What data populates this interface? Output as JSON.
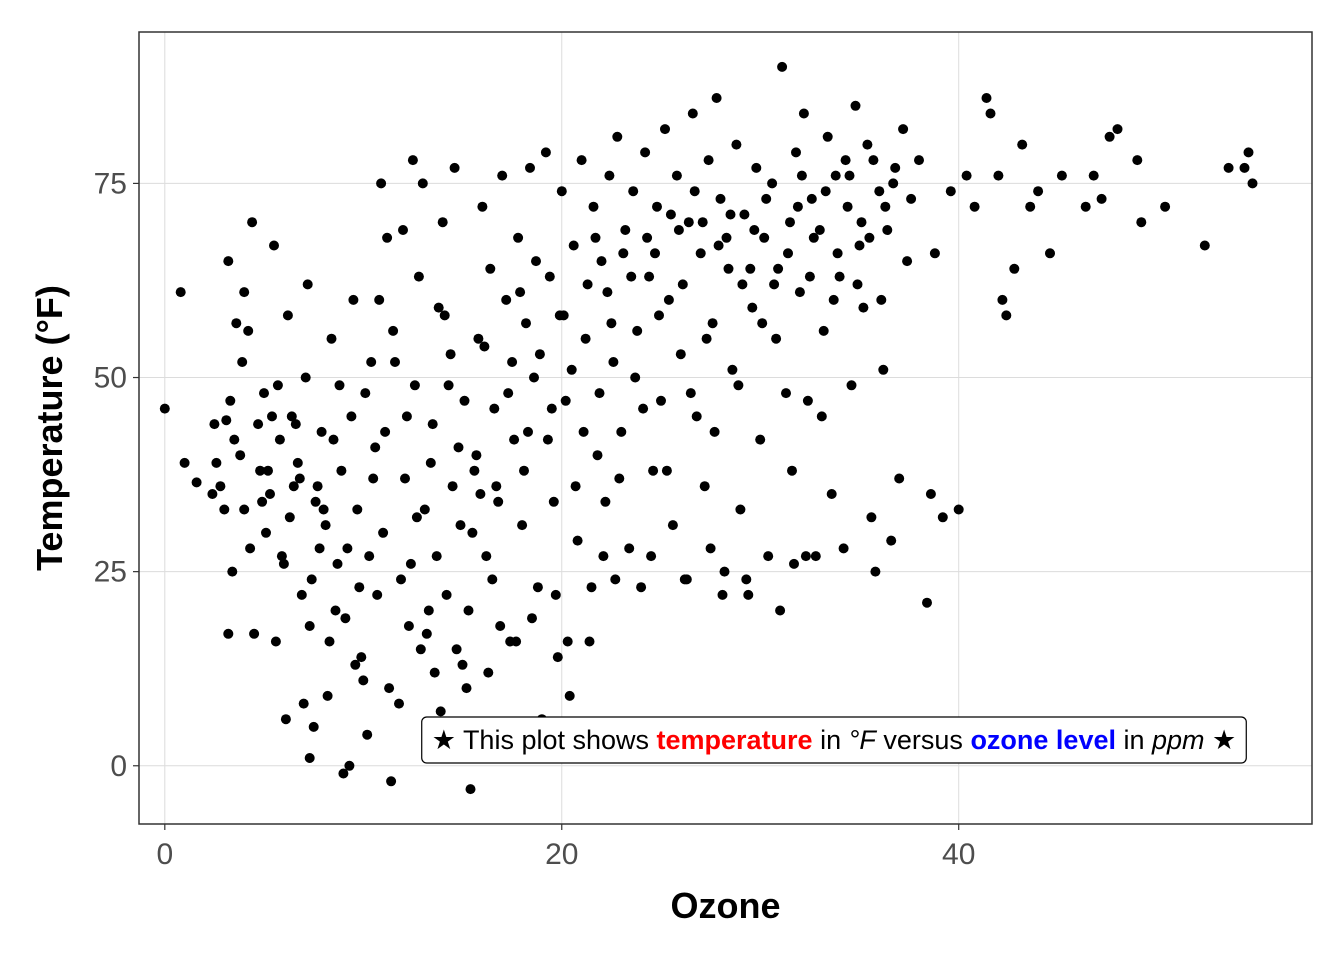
{
  "chart_data": {
    "type": "scatter",
    "title": "",
    "xlabel": "Ozone",
    "ylabel": "Temperature (°F)",
    "xlim": [
      -1.3,
      57.8
    ],
    "ylim": [
      -7.5,
      94.5
    ],
    "x_ticks": [
      0,
      20,
      40
    ],
    "y_ticks": [
      0,
      25,
      50,
      75
    ],
    "grid": true,
    "point_color": "#000000",
    "annotation": {
      "x": 0.75,
      "y": 0.93,
      "segments": [
        {
          "text": "★ This plot shows ",
          "color": "#000000",
          "style": "normal"
        },
        {
          "text": "temperature",
          "color": "#ff0000",
          "style": "bold"
        },
        {
          "text": " in ",
          "color": "#000000",
          "style": "normal"
        },
        {
          "text": "°F",
          "color": "#000000",
          "style": "italic"
        },
        {
          "text": " versus ",
          "color": "#000000",
          "style": "normal"
        },
        {
          "text": "ozone level",
          "color": "#0000ff",
          "style": "bold"
        },
        {
          "text": " in ",
          "color": "#000000",
          "style": "normal"
        },
        {
          "text": "ppm",
          "color": "#000000",
          "style": "italic"
        },
        {
          "text": " ★",
          "color": "#000000",
          "style": "normal"
        }
      ]
    },
    "points": [
      [
        0.0,
        46
      ],
      [
        0.8,
        61
      ],
      [
        1.0,
        39
      ],
      [
        1.6,
        36.5
      ],
      [
        2.4,
        35
      ],
      [
        2.5,
        44
      ],
      [
        2.6,
        39
      ],
      [
        2.8,
        36
      ],
      [
        3.0,
        33
      ],
      [
        3.1,
        44.5
      ],
      [
        3.2,
        17
      ],
      [
        3.2,
        65
      ],
      [
        3.3,
        47
      ],
      [
        3.4,
        25
      ],
      [
        3.5,
        42
      ],
      [
        3.6,
        57
      ],
      [
        3.8,
        40
      ],
      [
        4.0,
        61
      ],
      [
        4.0,
        33
      ],
      [
        4.2,
        56
      ],
      [
        4.4,
        70
      ],
      [
        4.5,
        17
      ],
      [
        4.7,
        44
      ],
      [
        5.0,
        48
      ],
      [
        5.2,
        38
      ],
      [
        5.3,
        35
      ],
      [
        5.5,
        67
      ],
      [
        5.6,
        16
      ],
      [
        5.8,
        42
      ],
      [
        6.1,
        6
      ],
      [
        6.2,
        58
      ],
      [
        6.4,
        45
      ],
      [
        6.6,
        44
      ],
      [
        6.8,
        37
      ],
      [
        7.0,
        8
      ],
      [
        7.2,
        62
      ],
      [
        7.3,
        1
      ],
      [
        7.4,
        24
      ],
      [
        7.5,
        5
      ],
      [
        7.6,
        34
      ],
      [
        7.8,
        28
      ],
      [
        8.0,
        33
      ],
      [
        8.2,
        9
      ],
      [
        8.5,
        42
      ],
      [
        8.6,
        20
      ],
      [
        8.8,
        49
      ],
      [
        9.0,
        -1
      ],
      [
        9.2,
        28
      ],
      [
        9.3,
        0
      ],
      [
        9.6,
        13
      ],
      [
        9.8,
        23
      ],
      [
        10.0,
        11
      ],
      [
        10.2,
        4
      ],
      [
        10.4,
        52
      ],
      [
        10.5,
        37
      ],
      [
        10.8,
        60
      ],
      [
        10.9,
        75
      ],
      [
        11.2,
        68
      ],
      [
        11.4,
        -2
      ],
      [
        11.6,
        52
      ],
      [
        11.8,
        8
      ],
      [
        12.0,
        69
      ],
      [
        12.2,
        45
      ],
      [
        12.4,
        26
      ],
      [
        12.5,
        78
      ],
      [
        12.8,
        63
      ],
      [
        13.0,
        75
      ],
      [
        13.2,
        17
      ],
      [
        13.4,
        39
      ],
      [
        13.6,
        12
      ],
      [
        13.8,
        59
      ],
      [
        14.0,
        70
      ],
      [
        14.2,
        22
      ],
      [
        14.4,
        53
      ],
      [
        14.6,
        77
      ],
      [
        14.8,
        41
      ],
      [
        15.0,
        13
      ],
      [
        15.2,
        10
      ],
      [
        15.4,
        -3
      ],
      [
        15.5,
        30
      ],
      [
        15.6,
        38
      ],
      [
        15.8,
        55
      ],
      [
        16.0,
        72
      ],
      [
        16.2,
        27
      ],
      [
        16.4,
        64
      ],
      [
        16.6,
        46
      ],
      [
        16.8,
        34
      ],
      [
        17.0,
        76
      ],
      [
        17.2,
        60
      ],
      [
        17.4,
        16
      ],
      [
        17.6,
        42
      ],
      [
        17.8,
        68
      ],
      [
        18.0,
        31
      ],
      [
        18.2,
        57
      ],
      [
        18.4,
        77
      ],
      [
        18.6,
        50
      ],
      [
        18.8,
        23
      ],
      [
        19.0,
        6
      ],
      [
        19.2,
        79
      ],
      [
        19.4,
        63
      ],
      [
        19.6,
        34
      ],
      [
        19.8,
        14
      ],
      [
        20.0,
        74
      ],
      [
        20.2,
        47
      ],
      [
        20.4,
        9
      ],
      [
        20.6,
        67
      ],
      [
        20.8,
        29
      ],
      [
        21.0,
        78
      ],
      [
        21.2,
        55
      ],
      [
        21.4,
        16
      ],
      [
        21.6,
        72
      ],
      [
        21.8,
        40
      ],
      [
        22.0,
        65
      ],
      [
        22.2,
        34
      ],
      [
        22.4,
        76
      ],
      [
        22.6,
        52
      ],
      [
        22.8,
        81
      ],
      [
        23.0,
        43
      ],
      [
        23.2,
        69
      ],
      [
        23.4,
        28
      ],
      [
        23.6,
        74
      ],
      [
        23.8,
        56
      ],
      [
        24.0,
        23
      ],
      [
        24.2,
        79
      ],
      [
        24.4,
        63
      ],
      [
        24.6,
        38
      ],
      [
        24.8,
        72
      ],
      [
        25.0,
        47
      ],
      [
        25.2,
        82
      ],
      [
        25.4,
        60
      ],
      [
        25.6,
        31
      ],
      [
        25.8,
        76
      ],
      [
        26.0,
        53
      ],
      [
        26.2,
        24
      ],
      [
        26.4,
        70
      ],
      [
        26.6,
        84
      ],
      [
        26.8,
        45
      ],
      [
        27.0,
        66
      ],
      [
        27.2,
        36
      ],
      [
        27.4,
        78
      ],
      [
        27.6,
        57
      ],
      [
        27.8,
        86
      ],
      [
        28.0,
        73
      ],
      [
        28.2,
        25
      ],
      [
        28.4,
        64
      ],
      [
        28.6,
        51
      ],
      [
        28.8,
        80
      ],
      [
        29.0,
        33
      ],
      [
        29.2,
        71
      ],
      [
        29.4,
        22
      ],
      [
        29.6,
        59
      ],
      [
        29.8,
        77
      ],
      [
        30.0,
        42
      ],
      [
        30.2,
        68
      ],
      [
        30.4,
        27
      ],
      [
        30.6,
        75
      ],
      [
        30.8,
        55
      ],
      [
        31.0,
        20
      ],
      [
        31.1,
        90
      ],
      [
        31.4,
        66
      ],
      [
        31.6,
        38
      ],
      [
        31.8,
        79
      ],
      [
        32.0,
        61
      ],
      [
        32.2,
        84
      ],
      [
        32.4,
        47
      ],
      [
        32.6,
        73
      ],
      [
        32.8,
        27
      ],
      [
        33.0,
        69
      ],
      [
        33.2,
        56
      ],
      [
        33.4,
        81
      ],
      [
        33.6,
        35
      ],
      [
        33.8,
        76
      ],
      [
        34.0,
        63
      ],
      [
        34.2,
        28
      ],
      [
        34.4,
        72
      ],
      [
        34.6,
        49
      ],
      [
        34.8,
        85
      ],
      [
        35.0,
        67
      ],
      [
        35.2,
        59
      ],
      [
        35.4,
        80
      ],
      [
        35.6,
        32
      ],
      [
        35.8,
        25
      ],
      [
        36.0,
        74
      ],
      [
        36.2,
        51
      ],
      [
        36.4,
        69
      ],
      [
        36.6,
        29
      ],
      [
        36.8,
        77
      ],
      [
        37.0,
        37
      ],
      [
        37.2,
        82
      ],
      [
        37.4,
        65
      ],
      [
        37.6,
        73
      ],
      [
        38.0,
        78
      ],
      [
        38.4,
        21
      ],
      [
        38.6,
        35
      ],
      [
        38.8,
        66
      ],
      [
        39.2,
        32
      ],
      [
        39.6,
        74
      ],
      [
        40.0,
        33
      ],
      [
        40.4,
        76
      ],
      [
        40.8,
        72
      ],
      [
        41.4,
        86
      ],
      [
        41.6,
        84
      ],
      [
        42.0,
        76
      ],
      [
        42.2,
        60
      ],
      [
        42.4,
        58
      ],
      [
        42.8,
        64
      ],
      [
        43.2,
        80
      ],
      [
        43.6,
        72
      ],
      [
        44.0,
        74
      ],
      [
        44.6,
        66
      ],
      [
        45.2,
        76
      ],
      [
        46.4,
        72
      ],
      [
        46.8,
        76
      ],
      [
        47.2,
        73
      ],
      [
        47.6,
        81
      ],
      [
        48.0,
        82
      ],
      [
        49.0,
        78
      ],
      [
        49.2,
        70
      ],
      [
        50.4,
        72
      ],
      [
        52.4,
        67
      ],
      [
        53.6,
        77
      ],
      [
        54.4,
        77
      ],
      [
        54.6,
        79
      ],
      [
        54.8,
        75
      ],
      [
        4.8,
        38
      ],
      [
        5.1,
        30
      ],
      [
        5.4,
        45
      ],
      [
        5.9,
        27
      ],
      [
        6.3,
        32
      ],
      [
        6.7,
        39
      ],
      [
        7.1,
        50
      ],
      [
        7.7,
        36
      ],
      [
        8.1,
        31
      ],
      [
        8.4,
        55
      ],
      [
        8.9,
        38
      ],
      [
        9.4,
        45
      ],
      [
        9.7,
        33
      ],
      [
        10.1,
        48
      ],
      [
        10.6,
        41
      ],
      [
        11.0,
        30
      ],
      [
        11.5,
        56
      ],
      [
        12.1,
        37
      ],
      [
        12.6,
        49
      ],
      [
        13.1,
        33
      ],
      [
        13.5,
        44
      ],
      [
        14.1,
        58
      ],
      [
        14.5,
        36
      ],
      [
        15.1,
        47
      ],
      [
        15.7,
        40
      ],
      [
        16.1,
        54
      ],
      [
        16.7,
        36
      ],
      [
        17.3,
        48
      ],
      [
        17.9,
        61
      ],
      [
        18.3,
        43
      ],
      [
        18.9,
        53
      ],
      [
        19.5,
        46
      ],
      [
        20.1,
        58
      ],
      [
        20.7,
        36
      ],
      [
        21.3,
        62
      ],
      [
        21.9,
        48
      ],
      [
        22.5,
        57
      ],
      [
        23.1,
        66
      ],
      [
        23.7,
        50
      ],
      [
        24.3,
        68
      ],
      [
        24.9,
        58
      ],
      [
        25.5,
        71
      ],
      [
        26.1,
        62
      ],
      [
        26.7,
        74
      ],
      [
        27.3,
        55
      ],
      [
        27.9,
        67
      ],
      [
        28.5,
        71
      ],
      [
        29.1,
        62
      ],
      [
        29.7,
        69
      ],
      [
        30.3,
        73
      ],
      [
        30.9,
        64
      ],
      [
        31.5,
        70
      ],
      [
        32.1,
        76
      ],
      [
        32.7,
        68
      ],
      [
        33.3,
        74
      ],
      [
        33.9,
        66
      ],
      [
        34.5,
        76
      ],
      [
        35.1,
        70
      ],
      [
        35.7,
        78
      ],
      [
        36.3,
        72
      ],
      [
        3.9,
        52
      ],
      [
        4.3,
        28
      ],
      [
        4.9,
        34
      ],
      [
        5.7,
        49
      ],
      [
        6.5,
        36
      ],
      [
        7.9,
        43
      ],
      [
        8.7,
        26
      ],
      [
        9.5,
        60
      ],
      [
        10.3,
        27
      ],
      [
        11.1,
        43
      ],
      [
        11.9,
        24
      ],
      [
        12.7,
        32
      ],
      [
        13.7,
        27
      ],
      [
        14.3,
        49
      ],
      [
        14.9,
        31
      ],
      [
        15.9,
        35
      ],
      [
        16.5,
        24
      ],
      [
        17.5,
        52
      ],
      [
        18.1,
        38
      ],
      [
        18.7,
        65
      ],
      [
        19.3,
        42
      ],
      [
        19.9,
        58
      ],
      [
        20.5,
        51
      ],
      [
        21.1,
        43
      ],
      [
        21.7,
        68
      ],
      [
        22.3,
        61
      ],
      [
        22.9,
        37
      ],
      [
        23.5,
        63
      ],
      [
        24.1,
        46
      ],
      [
        24.7,
        66
      ],
      [
        25.3,
        38
      ],
      [
        25.9,
        69
      ],
      [
        26.5,
        48
      ],
      [
        27.1,
        70
      ],
      [
        27.7,
        43
      ],
      [
        28.3,
        68
      ],
      [
        28.9,
        49
      ],
      [
        29.5,
        64
      ],
      [
        30.1,
        57
      ],
      [
        30.7,
        62
      ],
      [
        31.3,
        48
      ],
      [
        31.9,
        72
      ],
      [
        32.5,
        63
      ],
      [
        33.1,
        45
      ],
      [
        33.7,
        60
      ],
      [
        34.3,
        78
      ],
      [
        34.9,
        62
      ],
      [
        35.5,
        68
      ],
      [
        36.1,
        60
      ],
      [
        36.7,
        75
      ],
      [
        6.0,
        26
      ],
      [
        6.9,
        22
      ],
      [
        7.3,
        18
      ],
      [
        8.3,
        16
      ],
      [
        9.1,
        19
      ],
      [
        9.9,
        14
      ],
      [
        10.7,
        22
      ],
      [
        11.3,
        10
      ],
      [
        12.3,
        18
      ],
      [
        12.9,
        15
      ],
      [
        13.3,
        20
      ],
      [
        13.9,
        7
      ],
      [
        14.7,
        15
      ],
      [
        15.3,
        20
      ],
      [
        16.3,
        12
      ],
      [
        16.9,
        18
      ],
      [
        17.7,
        16
      ],
      [
        18.5,
        19
      ],
      [
        19.7,
        22
      ],
      [
        20.3,
        16
      ],
      [
        21.5,
        23
      ],
      [
        22.1,
        27
      ],
      [
        22.7,
        24
      ],
      [
        24.5,
        27
      ],
      [
        26.3,
        24
      ],
      [
        27.5,
        28
      ],
      [
        28.1,
        22
      ],
      [
        29.3,
        24
      ],
      [
        31.7,
        26
      ],
      [
        32.3,
        27
      ]
    ]
  }
}
